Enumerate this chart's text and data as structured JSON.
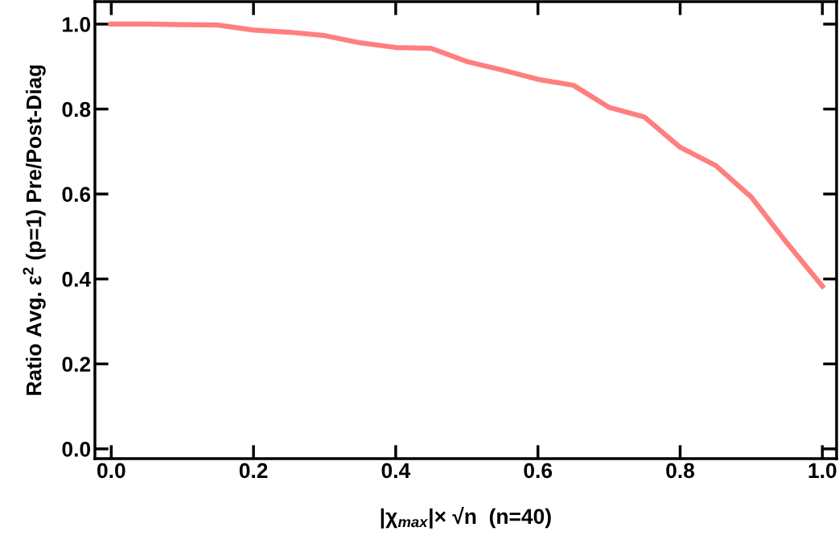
{
  "chart_data": {
    "type": "line",
    "xlabel": "|χ$_{max}$|× √n  (n=40)",
    "ylabel": "Ratio Avg. ε$^{2}$ (p=1) Pre/Post-Diag",
    "x": [
      0,
      0.05,
      0.1,
      0.15,
      0.2,
      0.25,
      0.3,
      0.35,
      0.4,
      0.45,
      0.5,
      0.55,
      0.6,
      0.65,
      0.7,
      0.75,
      0.8,
      0.85,
      0.9,
      0.95,
      1.0
    ],
    "series": [
      {
        "color": "#ff7f7f",
        "values": [
          1.0,
          1.0,
          0.999,
          0.998,
          0.986,
          0.981,
          0.973,
          0.956,
          0.945,
          0.943,
          0.912,
          0.892,
          0.87,
          0.856,
          0.804,
          0.781,
          0.71,
          0.667,
          0.593,
          0.485,
          0.383
        ]
      }
    ],
    "xlim": [
      -0.023,
      1.02
    ],
    "ylim": [
      -0.023,
      1.053
    ],
    "xticks": [
      {
        "value": 0,
        "label": "0.0"
      },
      0.2,
      0.4,
      0.6,
      0.8,
      {
        "value": 1,
        "label": "1.0"
      }
    ],
    "yticks": [
      {
        "value": 0,
        "label": "0.0"
      },
      0.2,
      0.4,
      0.6,
      0.8,
      {
        "value": 1,
        "label": "1.0"
      }
    ],
    "line_style": "solid",
    "marker": "none"
  }
}
